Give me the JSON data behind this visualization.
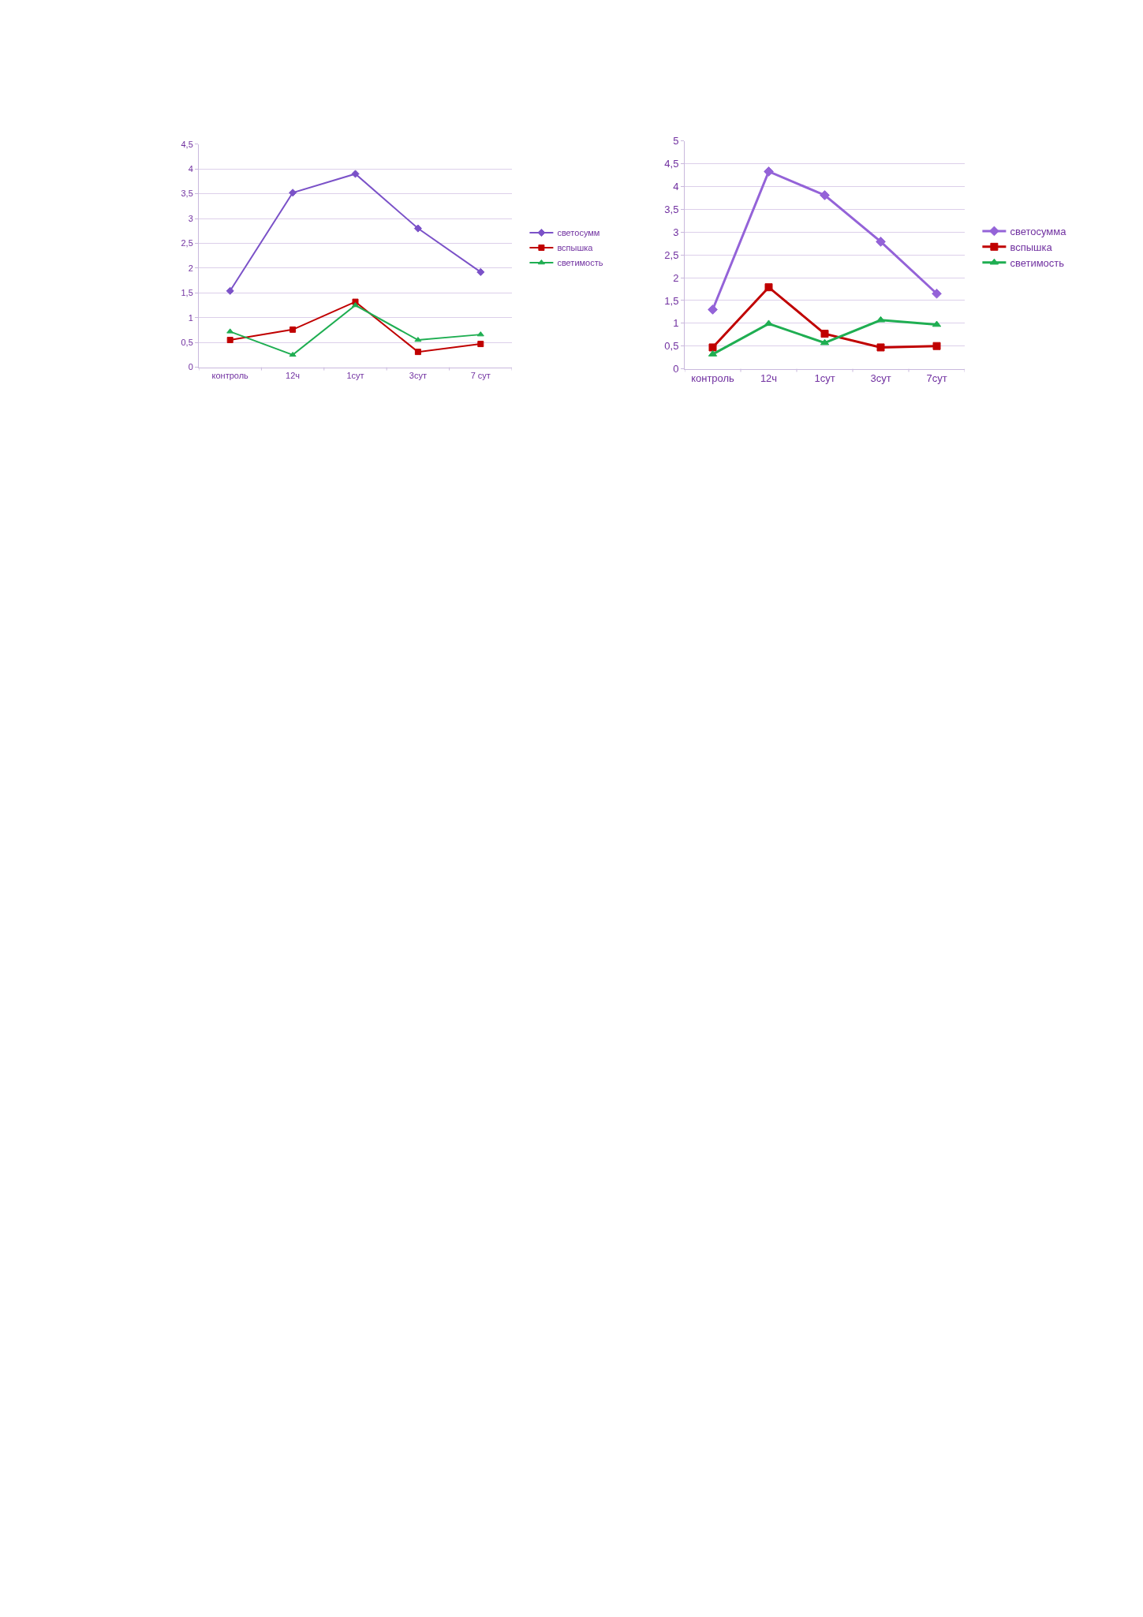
{
  "chart_data": [
    {
      "type": "line",
      "categories": [
        "контроль",
        "12ч",
        "1сут",
        "3сут",
        "7 сут"
      ],
      "series": [
        {
          "name": "светосумм",
          "color": "#7b52c8",
          "marker": "diamond",
          "values": [
            1.54,
            3.52,
            3.9,
            2.8,
            1.92
          ]
        },
        {
          "name": "вспышка",
          "color": "#c00000",
          "marker": "square",
          "values": [
            0.55,
            0.76,
            1.32,
            0.31,
            0.47
          ]
        },
        {
          "name": "светимость",
          "color": "#1fae52",
          "marker": "triangle",
          "values": [
            0.72,
            0.25,
            1.25,
            0.55,
            0.66
          ]
        }
      ],
      "ylim": [
        0,
        4.5
      ],
      "yticks": [
        0,
        {
          "value": 0.5,
          "label": "0,5"
        },
        1,
        {
          "value": 1.5,
          "label": "1,5"
        },
        2,
        {
          "value": 2.5,
          "label": "2,5"
        },
        3,
        {
          "value": 3.5,
          "label": "3,5"
        },
        4,
        {
          "value": 4.5,
          "label": "4,5"
        }
      ],
      "grid": "y",
      "legend": "right"
    },
    {
      "type": "line",
      "categories": [
        "контроль",
        "12ч",
        "1сут",
        "3сут",
        "7сут"
      ],
      "series": [
        {
          "name": "светосумма",
          "color": "#9463d8",
          "marker": "diamond",
          "values": [
            1.3,
            4.33,
            3.81,
            2.79,
            1.65
          ]
        },
        {
          "name": "вспышка",
          "color": "#c00000",
          "marker": "square",
          "values": [
            0.47,
            1.79,
            0.77,
            0.47,
            0.5
          ]
        },
        {
          "name": "светимость",
          "color": "#1fae52",
          "marker": "triangle",
          "values": [
            0.32,
            0.99,
            0.57,
            1.07,
            0.97
          ]
        }
      ],
      "ylim": [
        0,
        5
      ],
      "yticks": [
        0,
        {
          "value": 0.5,
          "label": "0,5"
        },
        1,
        {
          "value": 1.5,
          "label": "1,5"
        },
        2,
        {
          "value": 2.5,
          "label": "2,5"
        },
        3,
        {
          "value": 3.5,
          "label": "3,5"
        },
        4,
        {
          "value": 4.5,
          "label": "4,5"
        },
        5
      ],
      "grid": "y",
      "legend": "right"
    }
  ]
}
